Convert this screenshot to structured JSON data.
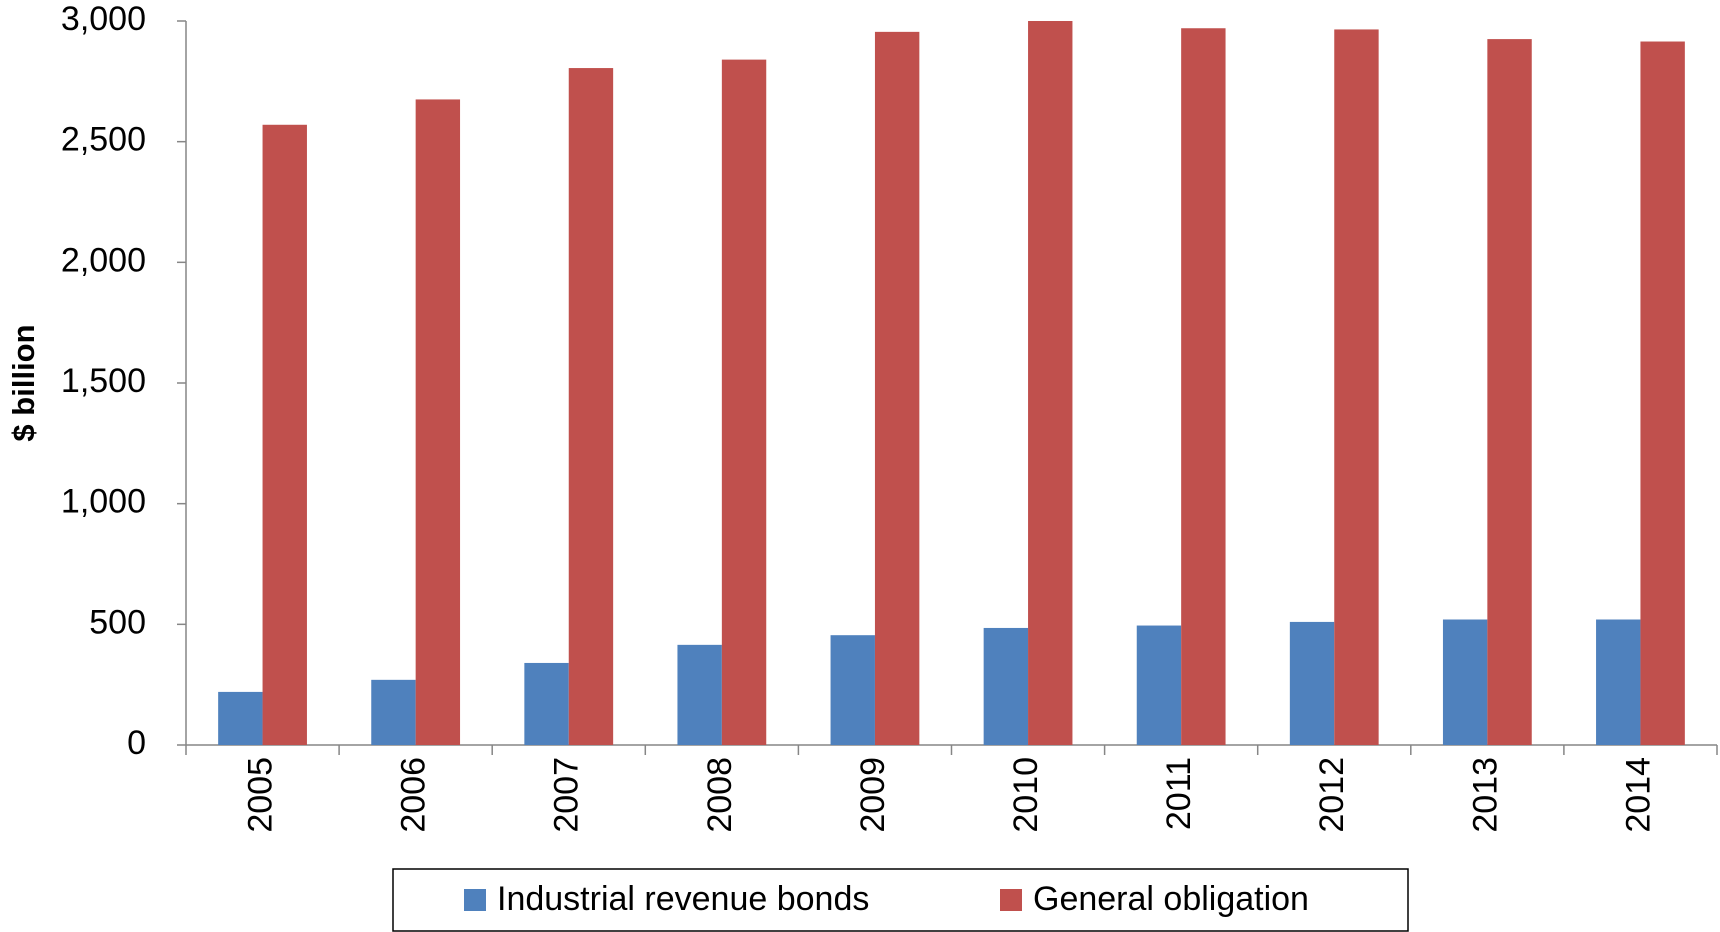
{
  "chart_data": {
    "type": "bar",
    "y_axis_label": "$ billion",
    "categories": [
      "2005",
      "2006",
      "2007",
      "2008",
      "2009",
      "2010",
      "2011",
      "2012",
      "2013",
      "2014"
    ],
    "series": [
      {
        "name": "Industrial revenue bonds",
        "color": "#4f81bd",
        "values": [
          220,
          270,
          340,
          415,
          455,
          485,
          495,
          510,
          520,
          520
        ]
      },
      {
        "name": "General obligation",
        "color": "#c0504d",
        "values": [
          2570,
          2675,
          2805,
          2840,
          2955,
          3000,
          2970,
          2965,
          2925,
          2915
        ]
      }
    ],
    "ylim": [
      0,
      3000
    ],
    "yticks": [
      0,
      500,
      {
        "value": 1000,
        "label": "1,000"
      },
      {
        "value": 1500,
        "label": "1,500"
      },
      {
        "value": 2000,
        "label": "2,000"
      },
      {
        "value": 2500,
        "label": "2,500"
      },
      {
        "value": 3000,
        "label": "3,000"
      }
    ],
    "grid": false
  }
}
